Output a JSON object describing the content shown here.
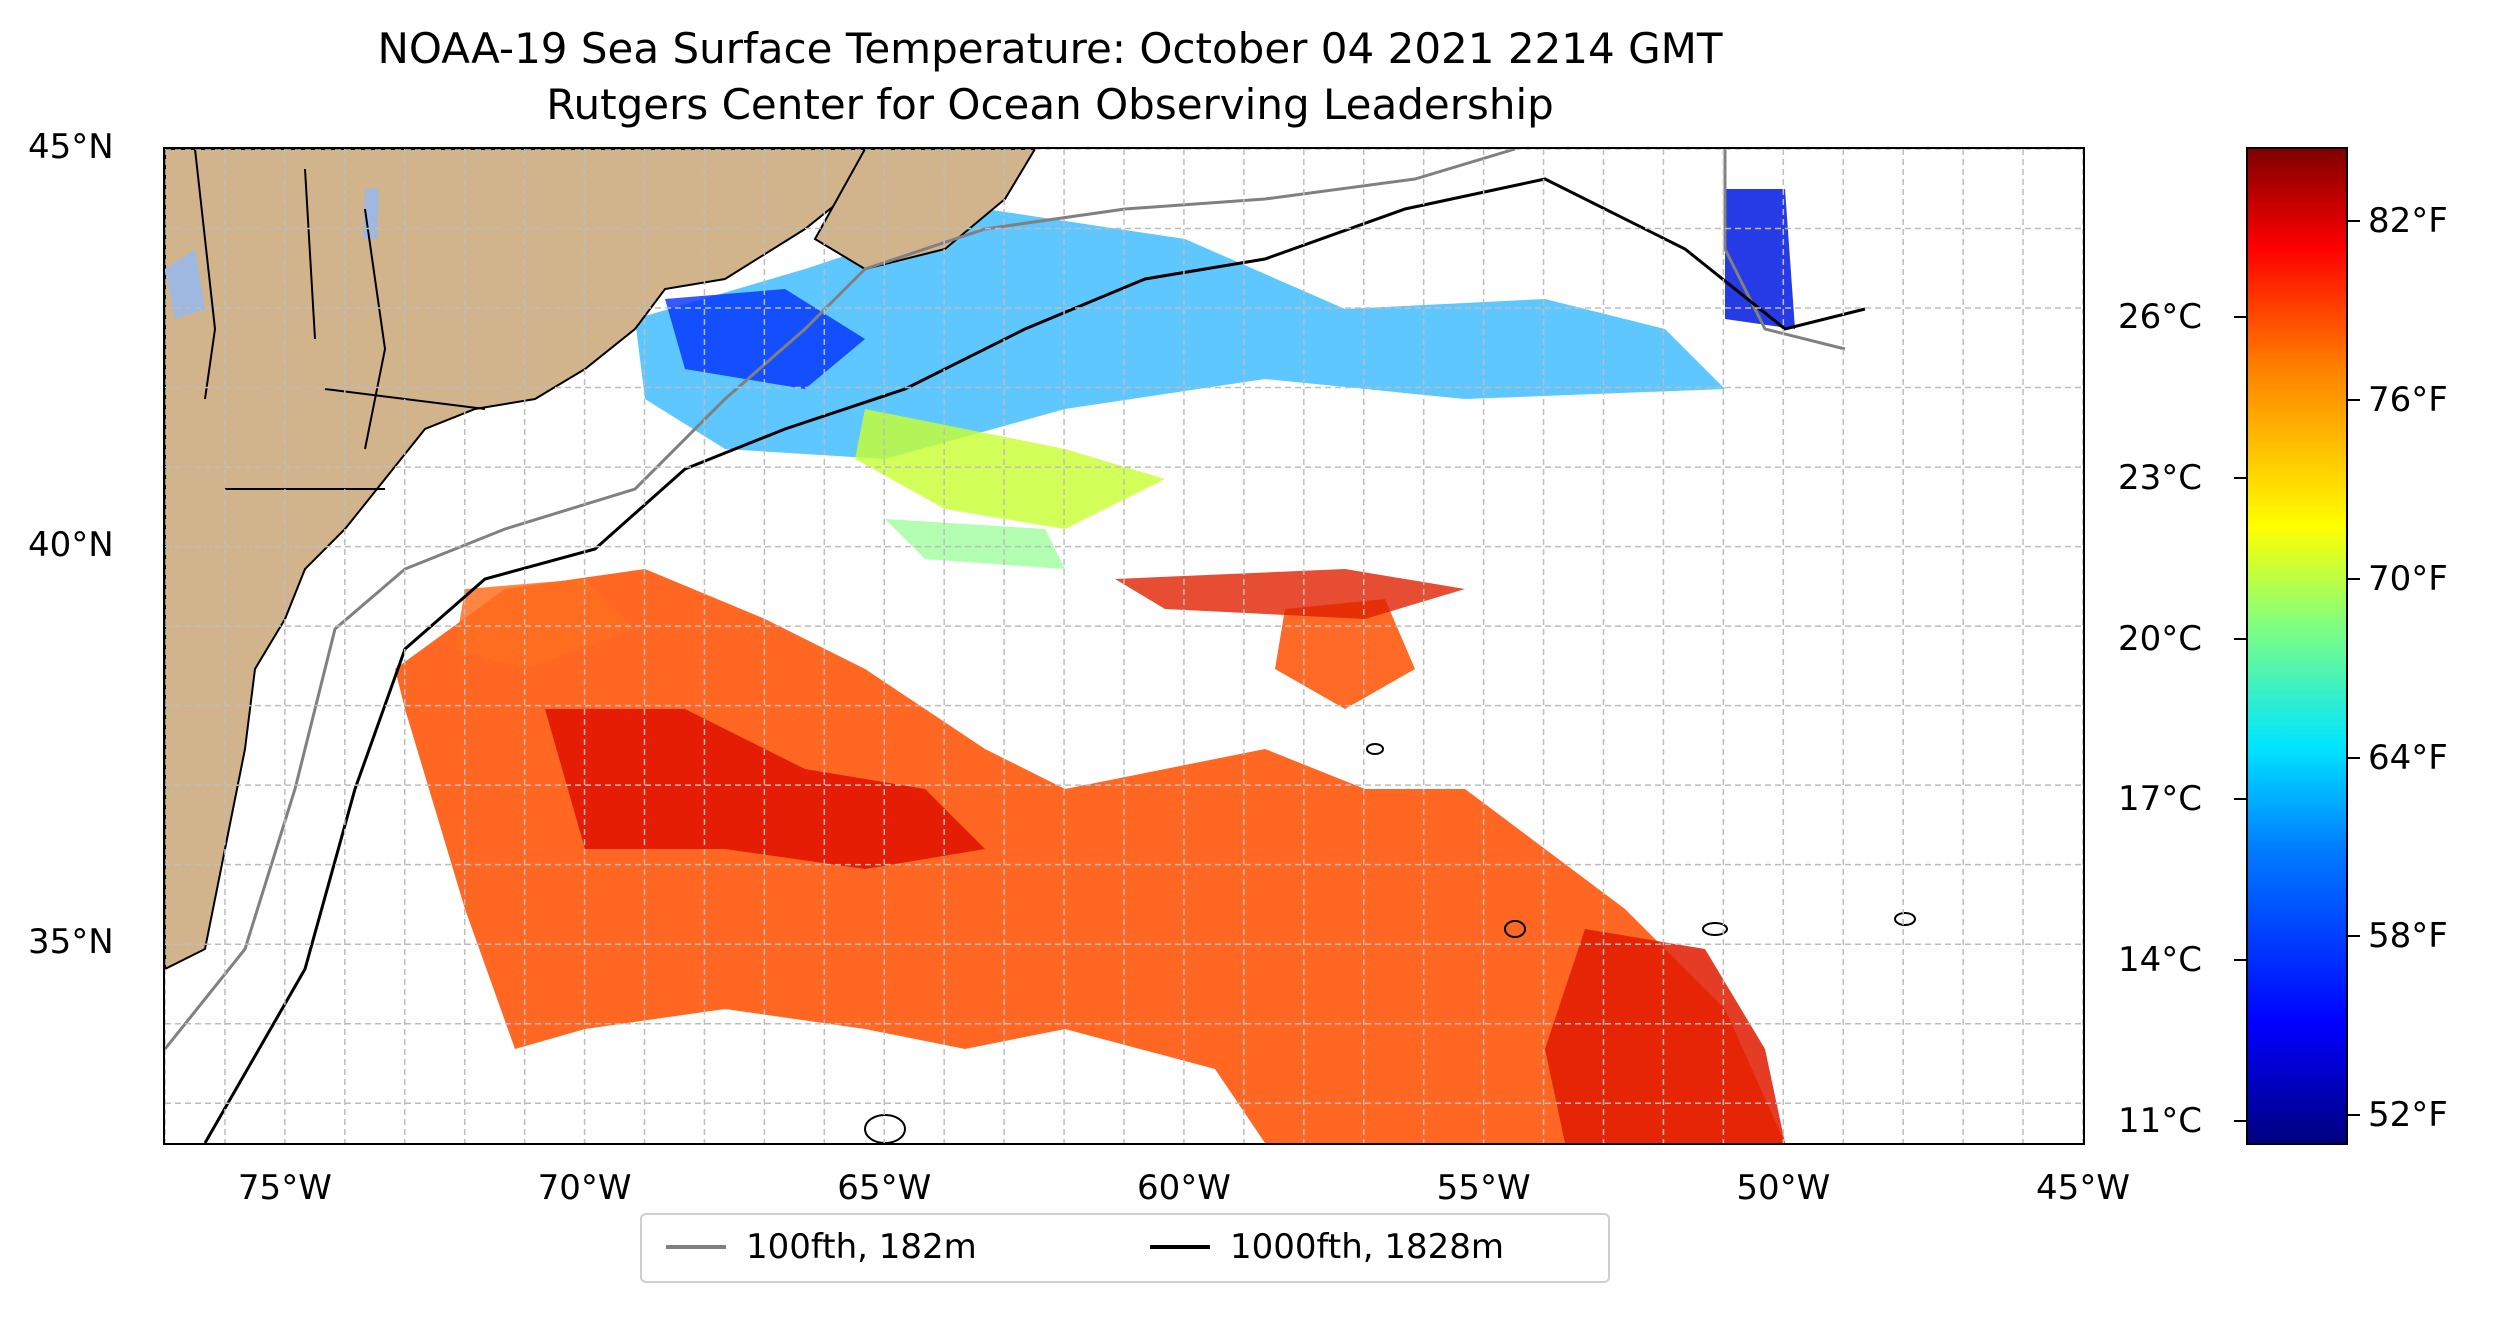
{
  "title": {
    "line1": "NOAA-19 Sea Surface Temperature: October 04 2021 2214 GMT",
    "line2": "Rutgers Center for Ocean Observing Leadership"
  },
  "map": {
    "extent": {
      "lon_min": -77,
      "lon_max": -45,
      "lat_min": 32.5,
      "lat_max": 45
    },
    "lat_ticks": [
      {
        "value": 45,
        "label": "45°N"
      },
      {
        "value": 40,
        "label": "40°N"
      },
      {
        "value": 35,
        "label": "35°N"
      }
    ],
    "lon_ticks": [
      {
        "value": -75,
        "label": "75°W"
      },
      {
        "value": -70,
        "label": "70°W"
      },
      {
        "value": -65,
        "label": "65°W"
      },
      {
        "value": -60,
        "label": "60°W"
      },
      {
        "value": -55,
        "label": "55°W"
      },
      {
        "value": -50,
        "label": "50°W"
      },
      {
        "value": -45,
        "label": "45°W"
      }
    ],
    "colors": {
      "land": "#d2b48c",
      "lakes": "#9fb8e0",
      "grid": "#bdbdbd"
    }
  },
  "legend": {
    "entries": [
      {
        "label": "100fth, 182m",
        "color": "#808080"
      },
      {
        "label": "1000fth, 1828m",
        "color": "#000000"
      }
    ],
    "position": "lower center"
  },
  "colorbar": {
    "colormap": "jet",
    "celsius_ticks": [
      {
        "value": 11,
        "label": "11°C"
      },
      {
        "value": 14,
        "label": "14°C"
      },
      {
        "value": 17,
        "label": "17°C"
      },
      {
        "value": 20,
        "label": "20°C"
      },
      {
        "value": 23,
        "label": "23°C"
      },
      {
        "value": 26,
        "label": "26°C"
      }
    ],
    "fahrenheit_ticks": [
      {
        "value": 52,
        "label": "52°F"
      },
      {
        "value": 58,
        "label": "58°F"
      },
      {
        "value": 64,
        "label": "64°F"
      },
      {
        "value": 70,
        "label": "70°F"
      },
      {
        "value": 76,
        "label": "76°F"
      },
      {
        "value": 82,
        "label": "82°F"
      }
    ],
    "range_f": [
      51,
      84.5
    ]
  }
}
